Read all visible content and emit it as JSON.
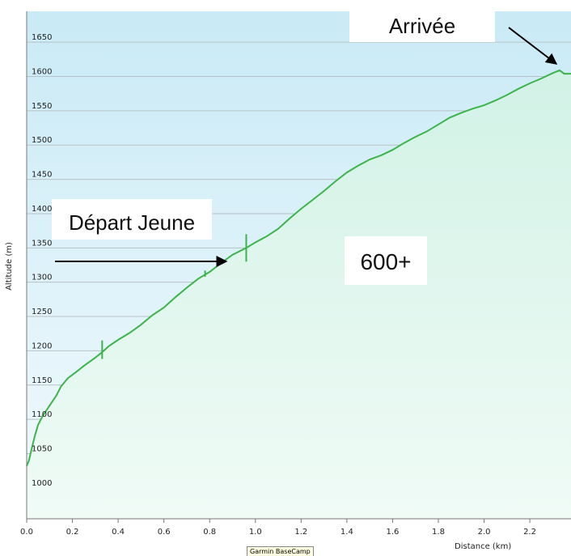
{
  "chart_data": {
    "type": "area",
    "xlabel": "Distance (km)",
    "ylabel": "Altitude (m)",
    "xlim": [
      0,
      2.38
    ],
    "ylim": [
      955,
      1695
    ],
    "x_ticks": [
      "0.0",
      "0.2",
      "0.4",
      "0.6",
      "0.8",
      "1.0",
      "1.2",
      "1.4",
      "1.6",
      "1.8",
      "2.0",
      "2.2"
    ],
    "y_ticks": [
      "1000",
      "1050",
      "1100",
      "1150",
      "1200",
      "1250",
      "1300",
      "1350",
      "1400",
      "1450",
      "1500",
      "1550",
      "1600",
      "1650"
    ],
    "grid": "horizontal",
    "series": [
      {
        "color": "#3cb44a",
        "points": [
          [
            0.0,
            1032
          ],
          [
            0.01,
            1040
          ],
          [
            0.02,
            1055
          ],
          [
            0.035,
            1075
          ],
          [
            0.05,
            1092
          ],
          [
            0.07,
            1105
          ],
          [
            0.1,
            1120
          ],
          [
            0.13,
            1135
          ],
          [
            0.15,
            1148
          ],
          [
            0.18,
            1160
          ],
          [
            0.22,
            1170
          ],
          [
            0.25,
            1178
          ],
          [
            0.3,
            1190
          ],
          [
            0.33,
            1198
          ],
          [
            0.36,
            1207
          ],
          [
            0.4,
            1216
          ],
          [
            0.45,
            1226
          ],
          [
            0.5,
            1238
          ],
          [
            0.55,
            1252
          ],
          [
            0.6,
            1263
          ],
          [
            0.65,
            1278
          ],
          [
            0.7,
            1292
          ],
          [
            0.75,
            1305
          ],
          [
            0.8,
            1315
          ],
          [
            0.85,
            1328
          ],
          [
            0.9,
            1340
          ],
          [
            0.96,
            1350
          ],
          [
            1.0,
            1358
          ],
          [
            1.05,
            1367
          ],
          [
            1.1,
            1378
          ],
          [
            1.15,
            1393
          ],
          [
            1.2,
            1407
          ],
          [
            1.25,
            1420
          ],
          [
            1.3,
            1433
          ],
          [
            1.35,
            1447
          ],
          [
            1.4,
            1460
          ],
          [
            1.45,
            1470
          ],
          [
            1.5,
            1479
          ],
          [
            1.55,
            1485
          ],
          [
            1.6,
            1493
          ],
          [
            1.65,
            1503
          ],
          [
            1.7,
            1512
          ],
          [
            1.75,
            1520
          ],
          [
            1.8,
            1530
          ],
          [
            1.85,
            1540
          ],
          [
            1.9,
            1547
          ],
          [
            1.95,
            1553
          ],
          [
            2.0,
            1558
          ],
          [
            2.05,
            1565
          ],
          [
            2.1,
            1573
          ],
          [
            2.15,
            1582
          ],
          [
            2.2,
            1590
          ],
          [
            2.25,
            1597
          ],
          [
            2.3,
            1605
          ],
          [
            2.33,
            1609
          ],
          [
            2.35,
            1604
          ],
          [
            2.38,
            1604
          ]
        ],
        "spikes": [
          {
            "x": 0.33,
            "low": 1188,
            "high": 1215
          },
          {
            "x": 0.96,
            "low": 1330,
            "high": 1370
          },
          {
            "x": 0.78,
            "low": 1308,
            "high": 1317
          }
        ]
      }
    ],
    "annotations": [
      {
        "text": "Arrivée",
        "arrow_to": [
          2.33,
          1609
        ]
      },
      {
        "text": "Départ Jeune",
        "arrow_to": [
          0.86,
          1332
        ]
      },
      {
        "text": "600+"
      }
    ]
  },
  "tooltip": "Garmin BaseCamp"
}
